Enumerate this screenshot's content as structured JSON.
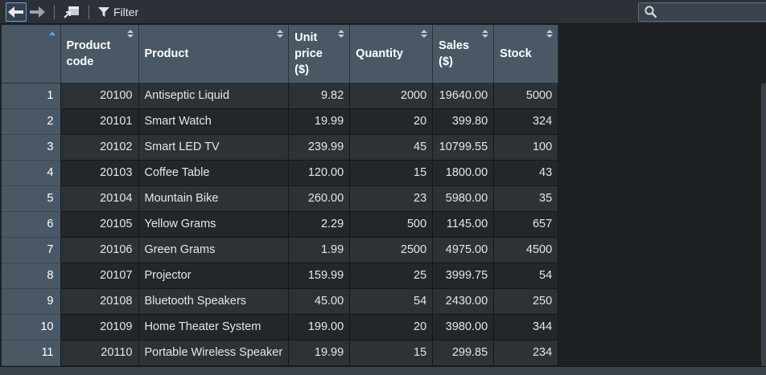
{
  "toolbar": {
    "filter_label": "Filter",
    "search_placeholder": ""
  },
  "columns": [
    {
      "label": "Product\ncode",
      "align": "right"
    },
    {
      "label": "Product",
      "align": "left"
    },
    {
      "label": "Unit\nprice\n($)",
      "align": "right"
    },
    {
      "label": "Quantity",
      "align": "right"
    },
    {
      "label": "Sales\n($)",
      "align": "right"
    },
    {
      "label": "Stock",
      "align": "right"
    }
  ],
  "rows": [
    {
      "n": "1",
      "code": "20100",
      "product": "Antiseptic Liquid",
      "price": "9.82",
      "qty": "2000",
      "sales": "19640.00",
      "stock": "5000"
    },
    {
      "n": "2",
      "code": "20101",
      "product": "Smart Watch",
      "price": "19.99",
      "qty": "20",
      "sales": "399.80",
      "stock": "324"
    },
    {
      "n": "3",
      "code": "20102",
      "product": "Smart LED TV",
      "price": "239.99",
      "qty": "45",
      "sales": "10799.55",
      "stock": "100"
    },
    {
      "n": "4",
      "code": "20103",
      "product": "Coffee Table",
      "price": "120.00",
      "qty": "15",
      "sales": "1800.00",
      "stock": "43"
    },
    {
      "n": "5",
      "code": "20104",
      "product": "Mountain Bike",
      "price": "260.00",
      "qty": "23",
      "sales": "5980.00",
      "stock": "35"
    },
    {
      "n": "6",
      "code": "20105",
      "product": "Yellow Grams",
      "price": "2.29",
      "qty": "500",
      "sales": "1145.00",
      "stock": "657"
    },
    {
      "n": "7",
      "code": "20106",
      "product": "Green Grams",
      "price": "1.99",
      "qty": "2500",
      "sales": "4975.00",
      "stock": "4500"
    },
    {
      "n": "8",
      "code": "20107",
      "product": "Projector",
      "price": "159.99",
      "qty": "25",
      "sales": "3999.75",
      "stock": "54"
    },
    {
      "n": "9",
      "code": "20108",
      "product": "Bluetooth Speakers",
      "price": "45.00",
      "qty": "54",
      "sales": "2430.00",
      "stock": "250"
    },
    {
      "n": "10",
      "code": "20109",
      "product": "Home Theater System",
      "price": "199.00",
      "qty": "20",
      "sales": "3980.00",
      "stock": "344"
    },
    {
      "n": "11",
      "code": "20110",
      "product": "Portable Wireless Speaker",
      "price": "19.99",
      "qty": "15",
      "sales": "299.85",
      "stock": "234"
    }
  ],
  "colors": {
    "header_bg": "#4a5866",
    "row_odd": "#2d3237",
    "row_even": "#23272b",
    "accent": "#6aa6e8"
  }
}
